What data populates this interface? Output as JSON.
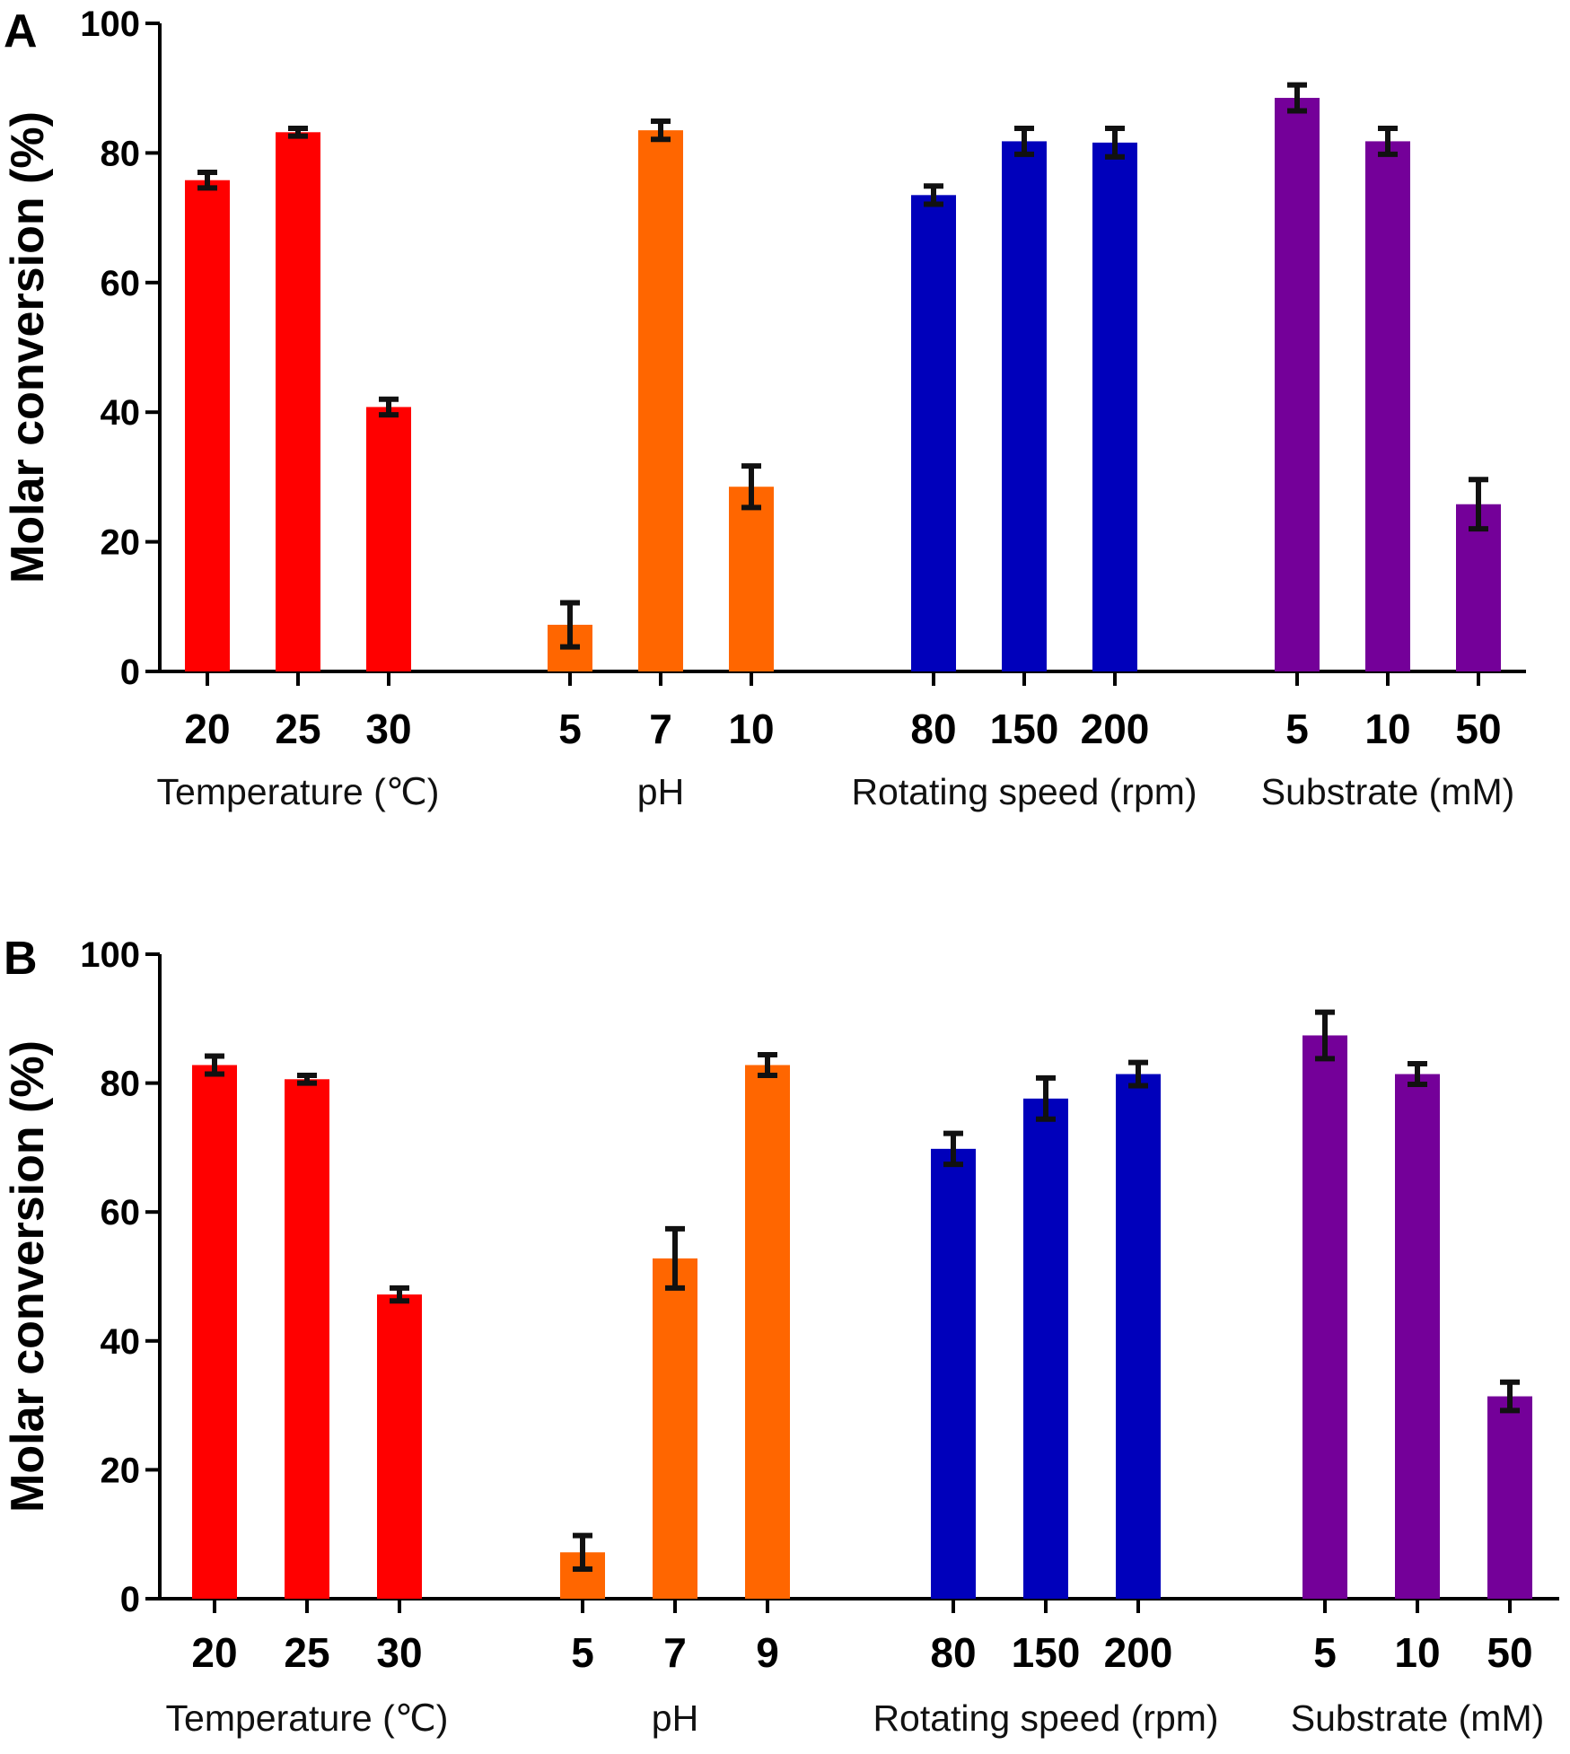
{
  "chart_data": [
    {
      "type": "bar",
      "panel": "A",
      "ylabel": "Molar conversion (%)",
      "ylim": [
        0,
        100
      ],
      "yticks": [
        0,
        20,
        40,
        60,
        80,
        100
      ],
      "groups": [
        {
          "label": "Temperature (℃)",
          "color": "#ff0000",
          "categories": [
            "20",
            "25",
            "30"
          ],
          "values": [
            75.8,
            83.2,
            40.8
          ],
          "errors": [
            1.2,
            0.6,
            1.2
          ]
        },
        {
          "label": "pH",
          "color": "#ff6600",
          "categories": [
            "5",
            "7",
            "10"
          ],
          "values": [
            7.2,
            83.5,
            28.5
          ],
          "errors": [
            3.4,
            1.4,
            3.2
          ]
        },
        {
          "label": "Rotating speed (rpm)",
          "color": "#0000bb",
          "categories": [
            "80",
            "150",
            "200"
          ],
          "values": [
            73.5,
            81.8,
            81.6
          ],
          "errors": [
            1.4,
            2.0,
            2.2
          ]
        },
        {
          "label": "Substrate (mM)",
          "color": "#740099",
          "categories": [
            "5",
            "10",
            "50"
          ],
          "values": [
            88.5,
            81.8,
            25.8
          ],
          "errors": [
            2.0,
            2.0,
            3.8
          ]
        }
      ]
    },
    {
      "type": "bar",
      "panel": "B",
      "ylabel": "Molar conversion (%)",
      "ylim": [
        0,
        100
      ],
      "yticks": [
        0,
        20,
        40,
        60,
        80,
        100
      ],
      "groups": [
        {
          "label": "Temperature (℃)",
          "color": "#ff0000",
          "categories": [
            "20",
            "25",
            "30"
          ],
          "values": [
            82.8,
            80.6,
            47.2
          ],
          "errors": [
            1.4,
            0.6,
            1.0
          ]
        },
        {
          "label": "pH",
          "color": "#ff6600",
          "categories": [
            "5",
            "7",
            "9"
          ],
          "values": [
            7.2,
            52.8,
            82.8
          ],
          "errors": [
            2.6,
            4.6,
            1.6
          ]
        },
        {
          "label": "Rotating speed (rpm)",
          "color": "#0000bb",
          "categories": [
            "80",
            "150",
            "200"
          ],
          "values": [
            69.8,
            77.6,
            81.4
          ],
          "errors": [
            2.4,
            3.2,
            1.8
          ]
        },
        {
          "label": "Substrate (mM)",
          "color": "#740099",
          "categories": [
            "5",
            "10",
            "50"
          ],
          "values": [
            87.4,
            81.4,
            31.4
          ],
          "errors": [
            3.6,
            1.6,
            2.2
          ]
        }
      ]
    }
  ]
}
